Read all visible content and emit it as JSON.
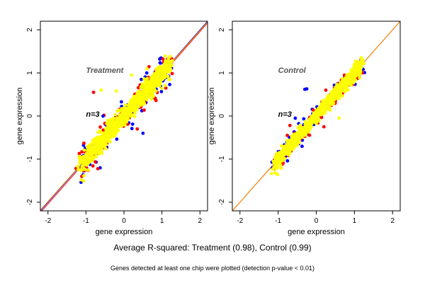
{
  "figure": {
    "summary_text": "Average R-squared: Treatment (0.98), Control (0.99)",
    "footnote_text": "Genes detected at least one chip were plotted (detection p-value < 0.01)"
  },
  "chart_data": [
    {
      "type": "scatter",
      "title": "Treatment",
      "annotation": "n=3",
      "xlabel": "gene expression",
      "ylabel": "gene expression",
      "xlim": [
        -2.2,
        2.2
      ],
      "ylim": [
        -2.2,
        2.2
      ],
      "xticks": [
        -2,
        -1,
        0,
        1,
        2
      ],
      "yticks": [
        -2,
        -1,
        0,
        1,
        2
      ],
      "grid": false,
      "reference_lines": [
        {
          "color": "#0000ff",
          "slope": 1.0,
          "intercept": 0.0
        },
        {
          "color": "#ff0000",
          "slope": 1.0,
          "intercept": -0.04
        },
        {
          "color": "#ffa500",
          "slope": 0.99,
          "intercept": 0.0
        }
      ],
      "series_colors": [
        "#0000ff",
        "#ff0000",
        "#ffff00"
      ],
      "cloud": {
        "x_range": [
          -1.15,
          1.2
        ],
        "y_center_slope": 1.0,
        "spread": 0.15
      },
      "outliers": [
        {
          "color": "#ff0000",
          "x": -0.8,
          "y": 0.55
        },
        {
          "color": "#ffff00",
          "x": -0.6,
          "y": 0.6
        },
        {
          "color": "#0000ff",
          "x": -0.55,
          "y": 0.0
        },
        {
          "color": "#ffff00",
          "x": -0.2,
          "y": 0.58
        },
        {
          "color": "#ffff00",
          "x": 0.2,
          "y": 0.95
        },
        {
          "color": "#0000ff",
          "x": 0.6,
          "y": 1.0
        },
        {
          "color": "#ff0000",
          "x": 0.35,
          "y": -0.3
        },
        {
          "color": "#0000ff",
          "x": 0.5,
          "y": -0.4
        }
      ]
    },
    {
      "type": "scatter",
      "title": "Control",
      "annotation": "n=3",
      "xlabel": "gene expression",
      "ylabel": "gene expression",
      "xlim": [
        -2.2,
        2.2
      ],
      "ylim": [
        -2.2,
        2.2
      ],
      "xticks": [
        -2,
        -1,
        0,
        1,
        2
      ],
      "yticks": [
        -2,
        -1,
        0,
        1,
        2
      ],
      "grid": false,
      "reference_lines": [
        {
          "color": "#0000ff",
          "slope": 1.0,
          "intercept": 0.0
        },
        {
          "color": "#ff0000",
          "slope": 1.0,
          "intercept": 0.0
        },
        {
          "color": "#ffa500",
          "slope": 1.0,
          "intercept": 0.0
        }
      ],
      "series_colors": [
        "#0000ff",
        "#ff0000",
        "#ffff00"
      ],
      "cloud": {
        "x_range": [
          -1.15,
          1.2
        ],
        "y_center_slope": 1.0,
        "spread": 0.1
      },
      "outliers": [
        {
          "color": "#0000ff",
          "x": -0.3,
          "y": 0.62
        },
        {
          "color": "#0000ff",
          "x": -0.25,
          "y": 0.63
        },
        {
          "color": "#ff0000",
          "x": 0.25,
          "y": 0.6
        },
        {
          "color": "#ffff00",
          "x": 0.6,
          "y": -0.05
        },
        {
          "color": "#ff0000",
          "x": 0.2,
          "y": -0.25
        },
        {
          "color": "#0000ff",
          "x": -0.55,
          "y": -0.05
        }
      ]
    }
  ]
}
